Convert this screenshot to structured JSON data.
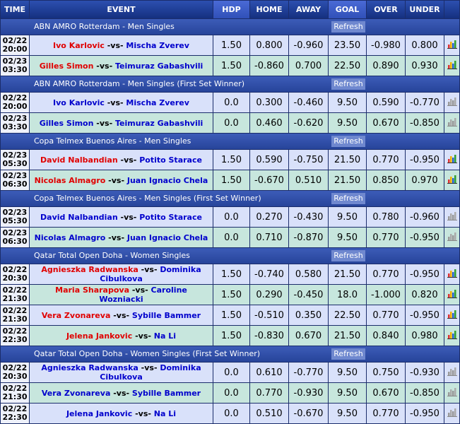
{
  "headers": [
    "TIME",
    "EVENT",
    "HDP",
    "HOME",
    "AWAY",
    "GOAL",
    "OVER",
    "UNDER"
  ],
  "vs": "-vs-",
  "refresh": "Refresh",
  "sections": [
    {
      "title": "ABN AMRO Rotterdam - Men Singles",
      "stats_icon": "color",
      "rows": [
        {
          "date": "02/22",
          "time": "20:00",
          "home": "Ivo Karlovic",
          "away": "Mischa Zverev",
          "home_color": "#e00000",
          "hdp": "1.50",
          "home_odds": "0.800",
          "away_odds": "-0.960",
          "goal": "23.50",
          "over": "-0.980",
          "under": "0.800"
        },
        {
          "date": "02/23",
          "time": "03:30",
          "home": "Gilles Simon",
          "away": "Teimuraz Gabashvili",
          "home_color": "#e00000",
          "hdp": "1.50",
          "home_odds": "-0.860",
          "away_odds": "0.700",
          "goal": "22.50",
          "over": "0.890",
          "under": "0.930"
        }
      ]
    },
    {
      "title": "ABN AMRO Rotterdam - Men Singles (First Set Winner)",
      "stats_icon": "gray",
      "rows": [
        {
          "date": "02/22",
          "time": "20:00",
          "home": "Ivo Karlovic",
          "away": "Mischa Zverev",
          "home_color": "#0000cc",
          "hdp": "0.0",
          "home_odds": "0.300",
          "away_odds": "-0.460",
          "goal": "9.50",
          "over": "0.590",
          "under": "-0.770"
        },
        {
          "date": "02/23",
          "time": "03:30",
          "home": "Gilles Simon",
          "away": "Teimuraz Gabashvili",
          "home_color": "#0000cc",
          "hdp": "0.0",
          "home_odds": "0.460",
          "away_odds": "-0.620",
          "goal": "9.50",
          "over": "0.670",
          "under": "-0.850"
        }
      ]
    },
    {
      "title": "Copa Telmex Buenos Aires - Men Singles",
      "stats_icon": "color",
      "rows": [
        {
          "date": "02/23",
          "time": "05:30",
          "home": "David Nalbandian",
          "away": "Potito Starace",
          "home_color": "#e00000",
          "hdp": "1.50",
          "home_odds": "0.590",
          "away_odds": "-0.750",
          "goal": "21.50",
          "over": "0.770",
          "under": "-0.950"
        },
        {
          "date": "02/23",
          "time": "06:30",
          "home": "Nicolas Almagro",
          "away": "Juan Ignacio Chela",
          "home_color": "#e00000",
          "hdp": "1.50",
          "home_odds": "-0.670",
          "away_odds": "0.510",
          "goal": "21.50",
          "over": "0.850",
          "under": "0.970"
        }
      ]
    },
    {
      "title": "Copa Telmex Buenos Aires - Men Singles (First Set Winner)",
      "stats_icon": "gray",
      "rows": [
        {
          "date": "02/23",
          "time": "05:30",
          "home": "David Nalbandian",
          "away": "Potito Starace",
          "home_color": "#0000cc",
          "hdp": "0.0",
          "home_odds": "0.270",
          "away_odds": "-0.430",
          "goal": "9.50",
          "over": "0.780",
          "under": "-0.960"
        },
        {
          "date": "02/23",
          "time": "06:30",
          "home": "Nicolas Almagro",
          "away": "Juan Ignacio Chela",
          "home_color": "#0000cc",
          "hdp": "0.0",
          "home_odds": "0.710",
          "away_odds": "-0.870",
          "goal": "9.50",
          "over": "0.770",
          "under": "-0.950"
        }
      ]
    },
    {
      "title": "Qatar Total Open Doha - Women Singles",
      "stats_icon": "color",
      "rows": [
        {
          "date": "02/22",
          "time": "20:30",
          "home": "Agnieszka Radwanska",
          "away": "Dominika Cibulkova",
          "home_color": "#e00000",
          "hdp": "1.50",
          "home_odds": "-0.740",
          "away_odds": "0.580",
          "goal": "21.50",
          "over": "0.770",
          "under": "-0.950"
        },
        {
          "date": "02/22",
          "time": "21:30",
          "home": "Maria Sharapova",
          "away": "Caroline Wozniacki",
          "home_color": "#e00000",
          "hdp": "1.50",
          "home_odds": "0.290",
          "away_odds": "-0.450",
          "goal": "18.0",
          "over": "-1.000",
          "under": "0.820"
        },
        {
          "date": "02/22",
          "time": "21:30",
          "home": "Vera Zvonareva",
          "away": "Sybille Bammer",
          "home_color": "#e00000",
          "hdp": "1.50",
          "home_odds": "-0.510",
          "away_odds": "0.350",
          "goal": "22.50",
          "over": "0.770",
          "under": "-0.950"
        },
        {
          "date": "02/22",
          "time": "22:30",
          "home": "Jelena Jankovic",
          "away": "Na Li",
          "home_color": "#e00000",
          "hdp": "1.50",
          "home_odds": "-0.830",
          "away_odds": "0.670",
          "goal": "21.50",
          "over": "0.840",
          "under": "0.980"
        }
      ]
    },
    {
      "title": "Qatar Total Open Doha - Women Singles (First Set Winner)",
      "stats_icon": "gray",
      "rows": [
        {
          "date": "02/22",
          "time": "20:30",
          "home": "Agnieszka Radwanska",
          "away": "Dominika Cibulkova",
          "home_color": "#0000cc",
          "hdp": "0.0",
          "home_odds": "0.610",
          "away_odds": "-0.770",
          "goal": "9.50",
          "over": "0.750",
          "under": "-0.930"
        },
        {
          "date": "02/22",
          "time": "21:30",
          "home": "Vera Zvonareva",
          "away": "Sybille Bammer",
          "home_color": "#0000cc",
          "hdp": "0.0",
          "home_odds": "0.770",
          "away_odds": "-0.930",
          "goal": "9.50",
          "over": "0.670",
          "under": "-0.850"
        },
        {
          "date": "02/22",
          "time": "22:30",
          "home": "Jelena Jankovic",
          "away": "Na Li",
          "home_color": "#0000cc",
          "hdp": "0.0",
          "home_odds": "0.510",
          "away_odds": "-0.670",
          "goal": "9.50",
          "over": "0.770",
          "under": "-0.950"
        }
      ]
    }
  ]
}
